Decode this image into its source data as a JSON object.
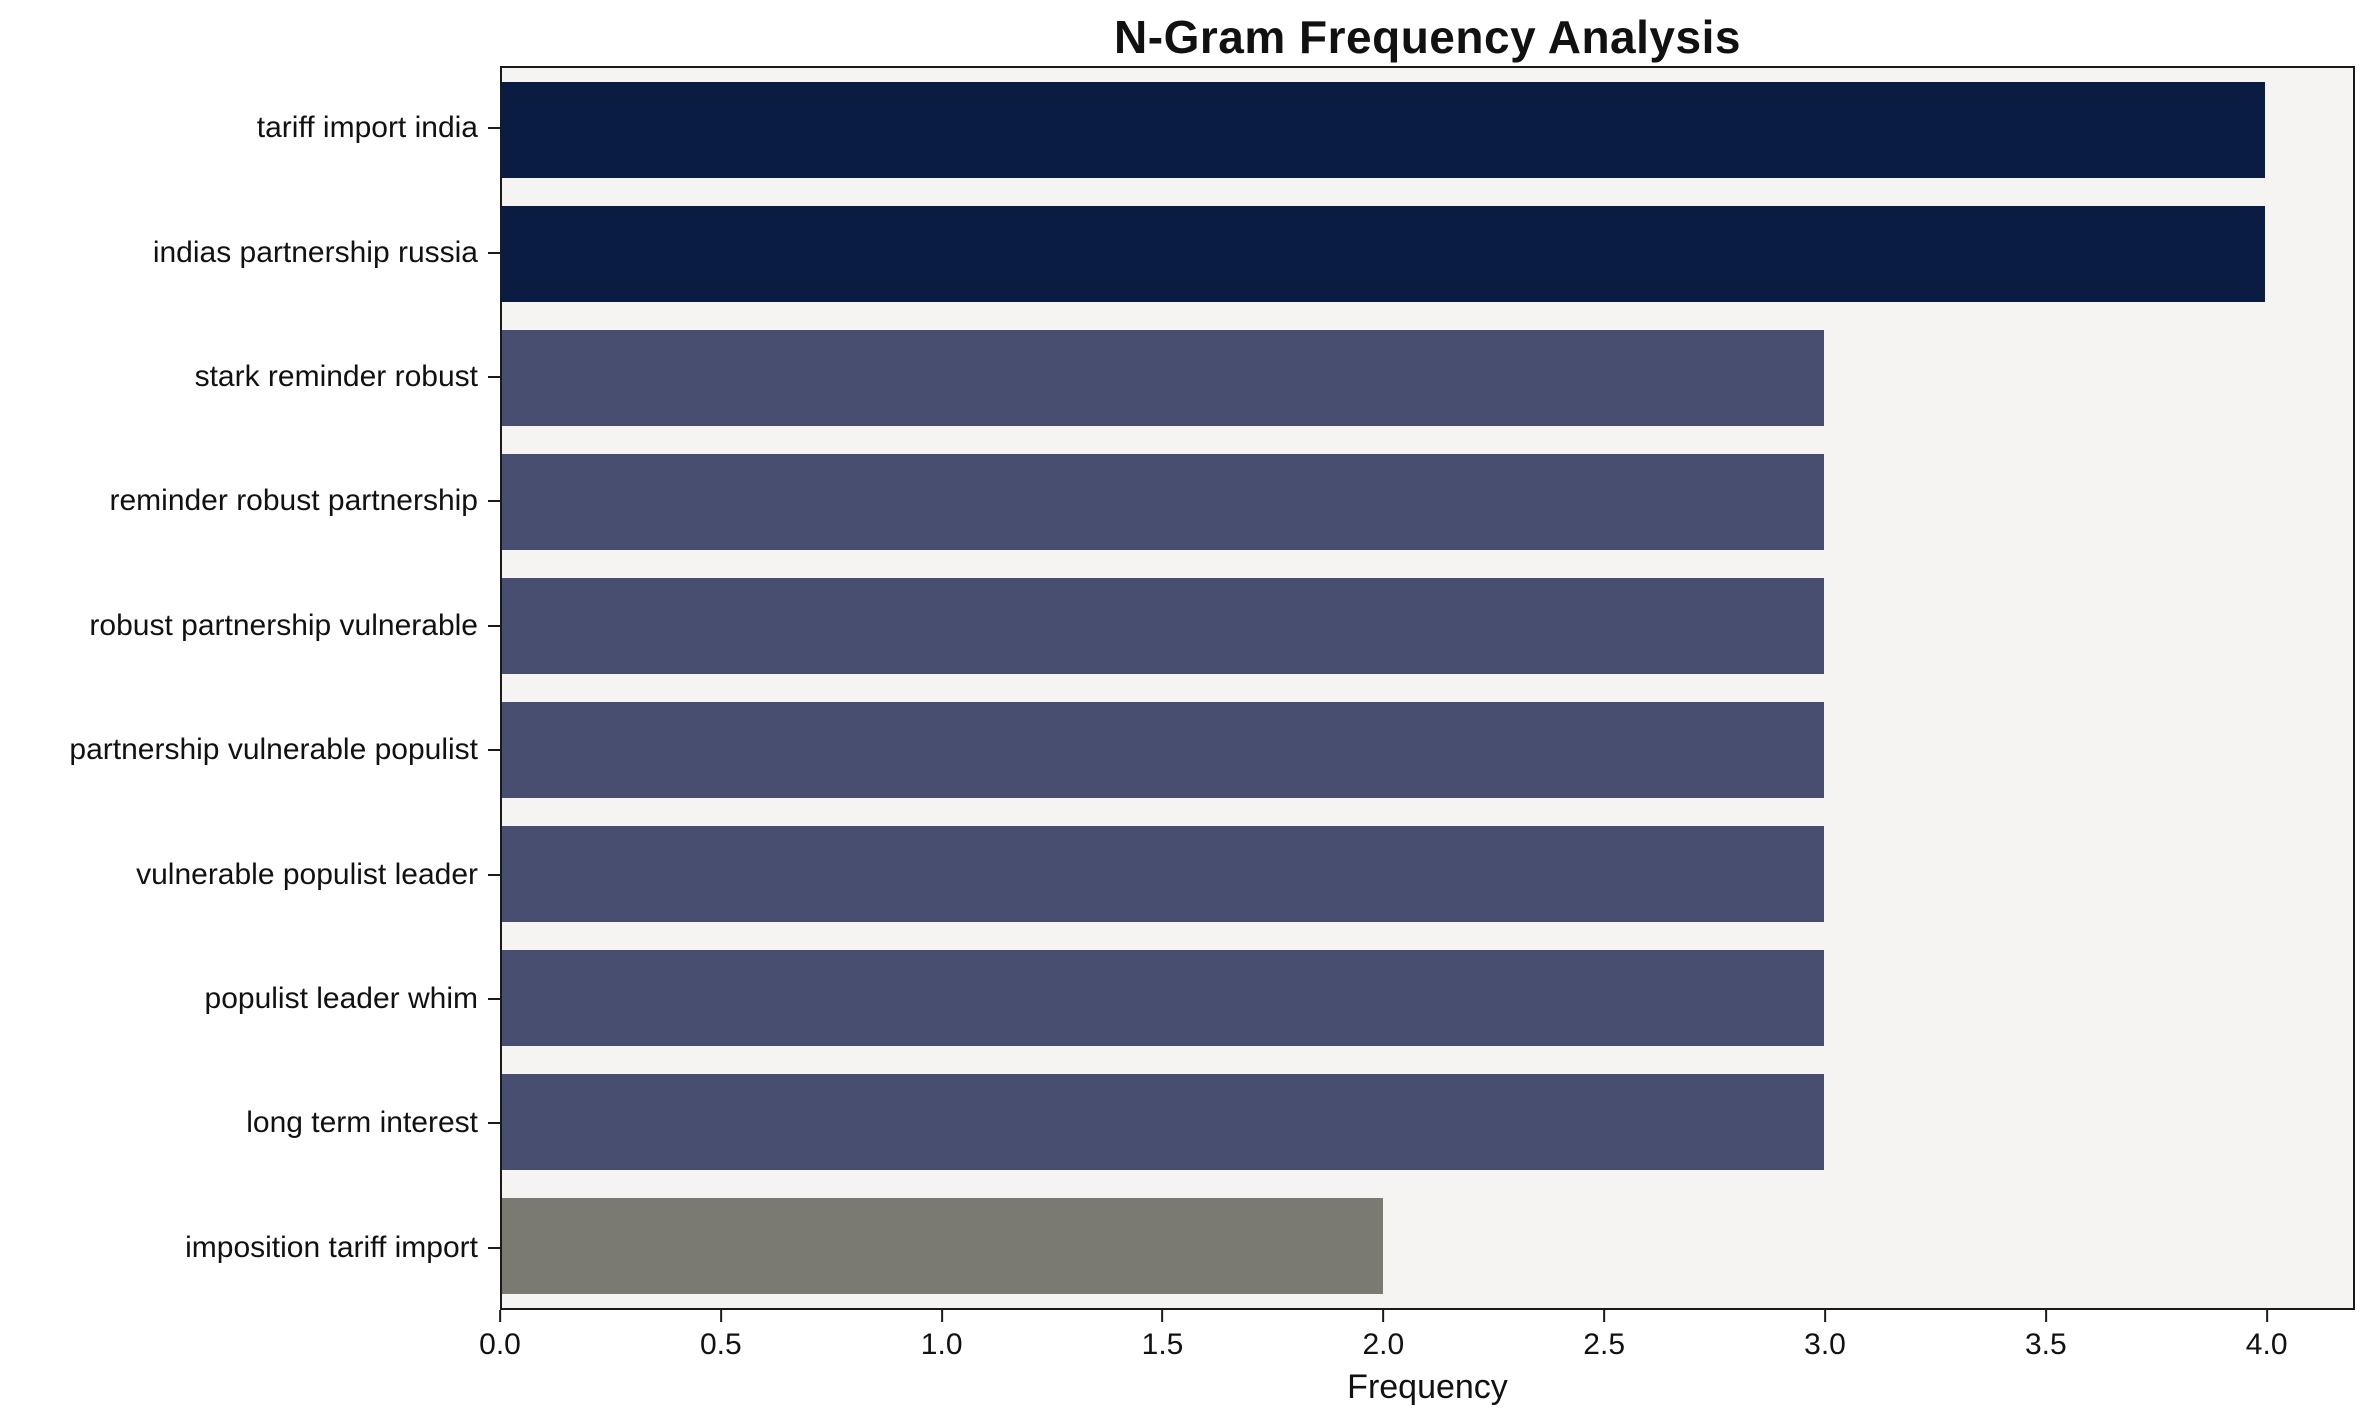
{
  "chart_data": {
    "type": "bar",
    "orientation": "horizontal",
    "title": "N-Gram Frequency Analysis",
    "xlabel": "Frequency",
    "ylabel": "",
    "categories": [
      "tariff import india",
      "indias partnership russia",
      "stark reminder robust",
      "reminder robust partnership",
      "robust partnership vulnerable",
      "partnership vulnerable populist",
      "vulnerable populist leader",
      "populist leader whim",
      "long term interest",
      "imposition tariff import"
    ],
    "values": [
      4,
      4,
      3,
      3,
      3,
      3,
      3,
      3,
      3,
      2
    ],
    "bar_colors": [
      "#0a1c42",
      "#0a1c42",
      "#474e6f",
      "#474e6f",
      "#474e6f",
      "#474e6f",
      "#474e6f",
      "#474e6f",
      "#474e6f",
      "#7b7a72"
    ],
    "xlim": [
      0,
      4.2
    ],
    "xticks": [
      0.0,
      0.5,
      1.0,
      1.5,
      2.0,
      2.5,
      3.0,
      3.5,
      4.0
    ],
    "xtick_labels": [
      "0.0",
      "0.5",
      "1.0",
      "1.5",
      "2.0",
      "2.5",
      "3.0",
      "3.5",
      "4.0"
    ],
    "grid": false,
    "legend": null,
    "plot_background": "#f5f4f2",
    "axis_border_color": "#1a1a1a"
  }
}
